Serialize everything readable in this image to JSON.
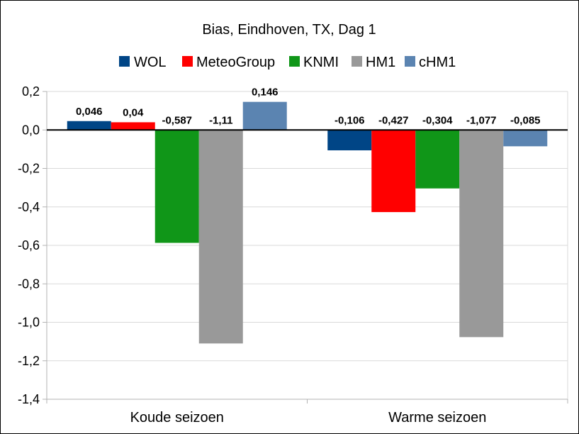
{
  "chart_data": {
    "type": "bar",
    "title": "Bias, Eindhoven, TX, Dag 1",
    "categories": [
      "Koude seizoen",
      "Warme seizoen"
    ],
    "series": [
      {
        "name": "WOL",
        "color": "#004586",
        "values": [
          0.046,
          -0.106
        ],
        "labels": [
          "0,046",
          "-0,106"
        ]
      },
      {
        "name": "MeteoGroup",
        "color": "#ff0000",
        "values": [
          0.04,
          -0.427
        ],
        "labels": [
          "0,04",
          "-0,427"
        ]
      },
      {
        "name": "KNMI",
        "color": "#109618",
        "values": [
          -0.587,
          -0.304
        ],
        "labels": [
          "-0,587",
          "-0,304"
        ]
      },
      {
        "name": "HM1",
        "color": "#999999",
        "values": [
          -1.11,
          -1.077
        ],
        "labels": [
          "-1,11",
          "-1,077"
        ]
      },
      {
        "name": "cHM1",
        "color": "#5b84b1",
        "values": [
          0.146,
          -0.085
        ],
        "labels": [
          "0,146",
          "-0,085"
        ]
      }
    ],
    "ylim": [
      -1.4,
      0.2
    ],
    "yticks": [
      0.2,
      0.0,
      -0.2,
      -0.4,
      -0.6,
      -0.8,
      -1.0,
      -1.2,
      -1.4
    ],
    "ytick_labels": [
      "0,2",
      "0,0",
      "-0,2",
      "-0,4",
      "-0,6",
      "-0,8",
      "-1,0",
      "-1,2",
      "-1,4"
    ],
    "grid": true,
    "legend_position": "top"
  }
}
